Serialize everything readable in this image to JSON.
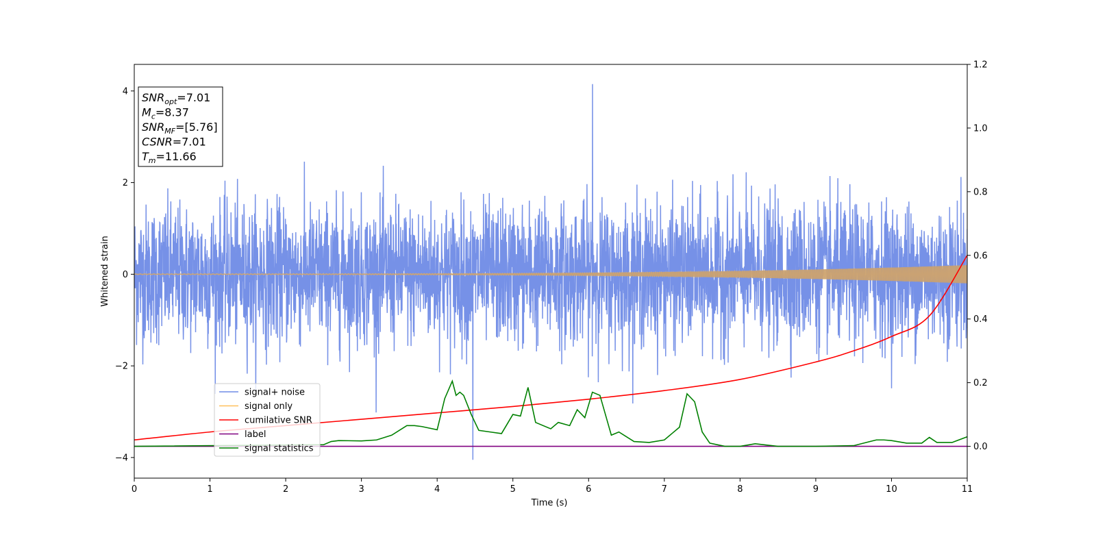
{
  "chart_data": {
    "type": "line",
    "xlabel": "Time (s)",
    "ylabel": "Whitened strain",
    "xlim": [
      0,
      11
    ],
    "ylim_left": [
      -4.45,
      4.58
    ],
    "ylim_right": [
      -0.1,
      1.2
    ],
    "x_ticks": [
      "0",
      "1",
      "2",
      "3",
      "4",
      "5",
      "6",
      "7",
      "8",
      "9",
      "10",
      "11"
    ],
    "y_ticks_left": [
      "−4",
      "−2",
      "0",
      "2",
      "4"
    ],
    "y_ticks_right": [
      "0.0",
      "0.2",
      "0.4",
      "0.6",
      "0.8",
      "1.0",
      "1.2"
    ],
    "grid": false,
    "legend_placement": "lower-left",
    "info_box": {
      "lines": [
        {
          "main": "SNR",
          "sub": "opt",
          "rest": "=7.01"
        },
        {
          "main": "M",
          "sub": "c",
          "rest": "=8.37"
        },
        {
          "main": "SNR",
          "sub": "MF",
          "rest": "=[5.76]"
        },
        {
          "main": "CSNR",
          "sub": "",
          "rest": "=7.01"
        },
        {
          "main": "T",
          "sub": "m",
          "rest": "=11.66"
        }
      ]
    },
    "series": [
      {
        "name": "signal+ noise",
        "color": "#6f8be6",
        "axis": "left",
        "kind": "noise",
        "sigma": 0.75,
        "peak": [
          -4.05,
          4.15
        ]
      },
      {
        "name": "signal only",
        "color": "#ffbf5a",
        "axis": "left",
        "kind": "chirp",
        "amp_start": 0.01,
        "amp_end": 0.2
      },
      {
        "name": "cumilative SNR",
        "color": "#ff0000",
        "axis": "right",
        "x": [
          0,
          1,
          2,
          3,
          4,
          5,
          6,
          7,
          8,
          9,
          9.5,
          10,
          10.5,
          11
        ],
        "y": [
          0.02,
          0.045,
          0.065,
          0.085,
          0.105,
          0.125,
          0.148,
          0.175,
          0.21,
          0.265,
          0.3,
          0.345,
          0.41,
          0.6
        ]
      },
      {
        "name": "label",
        "color": "#800080",
        "axis": "right",
        "x": [
          0,
          11
        ],
        "y": [
          0.0,
          0.0
        ]
      },
      {
        "name": "signal statistics",
        "color": "#008000",
        "axis": "right",
        "x": [
          0,
          2.5,
          2.6,
          2.7,
          3,
          3.2,
          3.4,
          3.6,
          3.7,
          3.8,
          4.0,
          4.1,
          4.2,
          4.25,
          4.3,
          4.35,
          4.45,
          4.55,
          4.7,
          4.85,
          5.0,
          5.1,
          5.2,
          5.3,
          5.5,
          5.6,
          5.75,
          5.85,
          5.95,
          6.05,
          6.15,
          6.3,
          6.4,
          6.6,
          6.8,
          7.0,
          7.1,
          7.2,
          7.3,
          7.4,
          7.5,
          7.6,
          7.8,
          8.0,
          8.2,
          8.5,
          9.0,
          9.5,
          9.8,
          9.9,
          10.0,
          10.2,
          10.4,
          10.5,
          10.6,
          10.8,
          11.0
        ],
        "y": [
          0.0,
          0.005,
          0.015,
          0.018,
          0.017,
          0.02,
          0.035,
          0.065,
          0.065,
          0.062,
          0.052,
          0.15,
          0.205,
          0.16,
          0.17,
          0.16,
          0.1,
          0.05,
          0.045,
          0.04,
          0.1,
          0.095,
          0.185,
          0.075,
          0.055,
          0.075,
          0.065,
          0.115,
          0.09,
          0.17,
          0.16,
          0.035,
          0.045,
          0.015,
          0.012,
          0.02,
          0.04,
          0.06,
          0.165,
          0.14,
          0.045,
          0.01,
          0.0,
          0.0,
          0.008,
          0.0,
          0.0,
          0.002,
          0.02,
          0.02,
          0.018,
          0.01,
          0.01,
          0.028,
          0.012,
          0.012,
          0.03
        ]
      }
    ]
  }
}
